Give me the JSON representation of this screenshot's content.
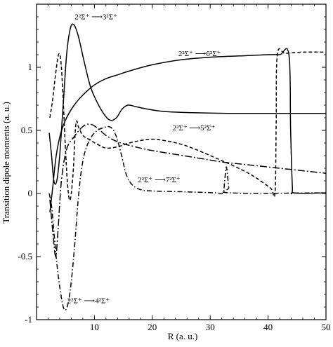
{
  "chart_data": {
    "type": "line",
    "xlabel": "R (a. u.)",
    "ylabel": "Transition dipole moments (a. u.)",
    "xlim": [
      0,
      50
    ],
    "ylim": [
      -1,
      1.5
    ],
    "x_ticks": [
      {
        "value": 10,
        "label": "10"
      },
      {
        "value": 20,
        "label": "20"
      },
      {
        "value": 30,
        "label": "30"
      },
      {
        "value": 40,
        "label": "40"
      },
      {
        "value": 50,
        "label": "50"
      }
    ],
    "y_ticks": [
      {
        "value": -1,
        "label": "-1"
      },
      {
        "value": -0.5,
        "label": "-0.5"
      },
      {
        "value": 0,
        "label": "0"
      },
      {
        "value": 0.5,
        "label": "0.5"
      },
      {
        "value": 1,
        "label": "1"
      }
    ],
    "grid": false,
    "series": [
      {
        "name": "2²Σ⁺→3²Σ⁺",
        "style": "solid",
        "color": "#000000",
        "points": [
          [
            2.2,
            0.48
          ],
          [
            2.6,
            0.3
          ],
          [
            3.0,
            0.1
          ],
          [
            3.5,
            0.1
          ],
          [
            4.0,
            0.3
          ],
          [
            4.6,
            0.7
          ],
          [
            5.2,
            1.1
          ],
          [
            5.8,
            1.3
          ],
          [
            6.4,
            1.34
          ],
          [
            7.2,
            1.25
          ],
          [
            8.2,
            1.05
          ],
          [
            9.3,
            0.85
          ],
          [
            10.5,
            0.72
          ],
          [
            11.8,
            0.62
          ],
          [
            12.8,
            0.58
          ],
          [
            13.8,
            0.6
          ],
          [
            14.8,
            0.67
          ],
          [
            15.8,
            0.7
          ],
          [
            17,
            0.69
          ],
          [
            19,
            0.67
          ],
          [
            22,
            0.65
          ],
          [
            27,
            0.64
          ],
          [
            33,
            0.635
          ],
          [
            40,
            0.635
          ],
          [
            50,
            0.635
          ]
        ]
      },
      {
        "name": "2²Σ⁺→6²Σ⁺",
        "style": "solid",
        "color": "#000000",
        "points": [
          [
            2.3,
            -0.15
          ],
          [
            2.8,
            0.05
          ],
          [
            3.4,
            0.3
          ],
          [
            4.2,
            0.48
          ],
          [
            5.2,
            0.6
          ],
          [
            6.5,
            0.7
          ],
          [
            8,
            0.78
          ],
          [
            10,
            0.86
          ],
          [
            12,
            0.91
          ],
          [
            14,
            0.94
          ],
          [
            16,
            0.97
          ],
          [
            20,
            1.02
          ],
          [
            25,
            1.06
          ],
          [
            30,
            1.08
          ],
          [
            35,
            1.09
          ],
          [
            40,
            1.1
          ],
          [
            42,
            1.1
          ],
          [
            43.6,
            1.1
          ],
          [
            43.9,
            0.5
          ],
          [
            44.2,
            0.05
          ],
          [
            44.5,
            0.005
          ],
          [
            50,
            0.005
          ]
        ]
      },
      {
        "name": "2²Σ⁺→5²Σ⁺",
        "style": "dashed",
        "color": "#000000",
        "points": [
          [
            2.3,
            0.6
          ],
          [
            2.8,
            0.75
          ],
          [
            3.3,
            0.95
          ],
          [
            3.8,
            1.1
          ],
          [
            4.2,
            1.05
          ],
          [
            4.6,
            0.75
          ],
          [
            5.0,
            0.35
          ],
          [
            5.4,
            0.05
          ],
          [
            5.8,
            -0.05
          ],
          [
            6.3,
            0.15
          ],
          [
            6.8,
            0.55
          ],
          [
            7.3,
            0.52
          ],
          [
            8,
            0.46
          ],
          [
            9,
            0.43
          ],
          [
            10.5,
            0.39
          ],
          [
            12,
            0.36
          ],
          [
            14,
            0.37
          ],
          [
            16,
            0.4
          ],
          [
            18,
            0.42
          ],
          [
            20,
            0.43
          ],
          [
            22,
            0.42
          ],
          [
            25,
            0.39
          ],
          [
            28,
            0.34
          ],
          [
            31,
            0.28
          ],
          [
            34,
            0.22
          ],
          [
            37,
            0.15
          ],
          [
            39,
            0.09
          ],
          [
            40.5,
            0.04
          ],
          [
            41.2,
            0.01
          ],
          [
            41.4,
            0.55
          ],
          [
            41.6,
            1.1
          ],
          [
            43,
            1.11
          ],
          [
            46,
            1.12
          ],
          [
            50,
            1.12
          ]
        ]
      },
      {
        "name": "2²Σ⁺→4²Σ⁺",
        "style": "dashdot",
        "color": "#000000",
        "points": [
          [
            2.2,
            0.0
          ],
          [
            2.6,
            -0.1
          ],
          [
            3.0,
            -0.3
          ],
          [
            3.5,
            -0.55
          ],
          [
            4.2,
            -0.8
          ],
          [
            4.8,
            -0.92
          ],
          [
            5.4,
            -0.88
          ],
          [
            6.0,
            -0.7
          ],
          [
            6.6,
            -0.4
          ],
          [
            7.2,
            -0.05
          ],
          [
            7.8,
            0.2
          ],
          [
            8.5,
            0.35
          ],
          [
            9.5,
            0.45
          ],
          [
            10.5,
            0.5
          ],
          [
            11.5,
            0.52
          ],
          [
            12.5,
            0.53
          ],
          [
            13.3,
            0.5
          ],
          [
            14,
            0.42
          ],
          [
            14.8,
            0.28
          ],
          [
            15.5,
            0.15
          ],
          [
            16.5,
            0.07
          ],
          [
            18,
            0.03
          ],
          [
            20,
            0.02
          ],
          [
            24,
            0.015
          ],
          [
            28,
            0.01
          ],
          [
            31,
            0.005
          ],
          [
            32.2,
            0.005
          ],
          [
            32.5,
            0.1
          ],
          [
            32.8,
            0.21
          ],
          [
            33.2,
            0.05
          ],
          [
            33.5,
            0.005
          ],
          [
            50,
            0.005
          ]
        ]
      },
      {
        "name": "2²Σ⁺→7²Σ⁺",
        "style": "dashdotlong",
        "color": "#000000",
        "points": [
          [
            2.3,
            -0.05
          ],
          [
            2.8,
            -0.3
          ],
          [
            3.3,
            -0.5
          ],
          [
            3.7,
            -0.3
          ],
          [
            4.3,
            0.1
          ],
          [
            5.2,
            0.35
          ],
          [
            6.5,
            0.45
          ],
          [
            8,
            0.53
          ],
          [
            9.2,
            0.55
          ],
          [
            10.5,
            0.52
          ],
          [
            12,
            0.46
          ],
          [
            14,
            0.41
          ],
          [
            17,
            0.37
          ],
          [
            20,
            0.34
          ],
          [
            24,
            0.31
          ],
          [
            28,
            0.28
          ],
          [
            32,
            0.25
          ],
          [
            36,
            0.23
          ],
          [
            40,
            0.21
          ],
          [
            44,
            0.19
          ],
          [
            48,
            0.17
          ],
          [
            50,
            0.16
          ]
        ]
      }
    ],
    "annotations": [
      {
        "text": "2²Σ⁺ ⟶3²Σ⁺",
        "x": 6.6,
        "y": 1.38
      },
      {
        "text": "2²Σ⁺ ⟶6²Σ⁺",
        "x": 24.5,
        "y": 1.09
      },
      {
        "text": "2²Σ⁺ ⟶5²Σ⁺",
        "x": 23.5,
        "y": 0.5
      },
      {
        "text": "2²Σ⁺ ⟶7²Σ⁺",
        "x": 17.5,
        "y": 0.09
      },
      {
        "text": "2²Σ⁺ ⟶4²Σ⁺",
        "x": 5.3,
        "y": -0.87
      }
    ]
  }
}
